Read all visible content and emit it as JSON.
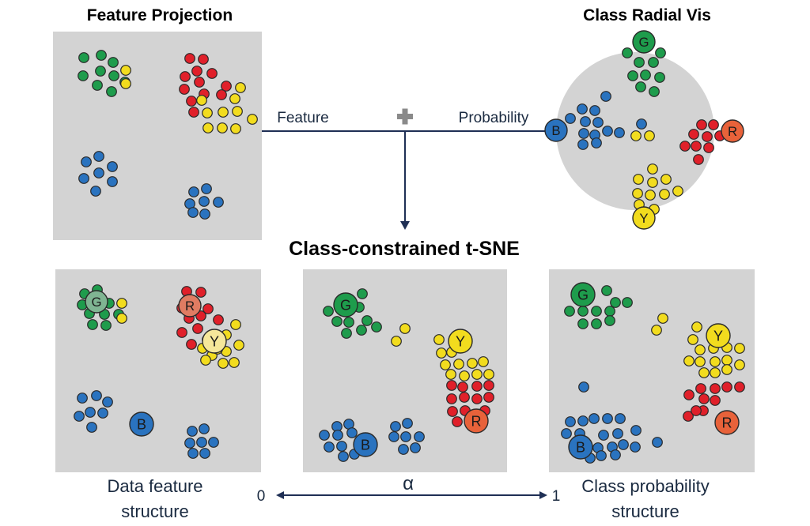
{
  "titles": {
    "feature_projection": "Feature Projection",
    "class_radial_vis": "Class Radial Vis",
    "center": "Class-constrained t-SNE"
  },
  "connector": {
    "feature_label": "Feature",
    "plus_symbol": "+",
    "probability_label": "Probability"
  },
  "bottom": {
    "left_caption_line1": "Data feature",
    "left_caption_line2": "structure",
    "right_caption_line1": "Class probability",
    "right_caption_line2": "structure",
    "alpha_symbol": "α",
    "alpha_min": "0",
    "alpha_max": "1"
  },
  "class_letters": {
    "green": "G",
    "red": "R",
    "yellow": "Y",
    "blue": "B"
  },
  "colors": {
    "green": "#1e9c4c",
    "red": "#e0202a",
    "yellow": "#f2dc1e",
    "blue": "#2a73bf",
    "orange": "#e8623a",
    "panel_gray": "#d3d3d3",
    "connector": "#1f2f55",
    "faded_green": "#7fb592",
    "faded_red": "#e07c62",
    "faded_yellow": "#f5e79a"
  }
}
